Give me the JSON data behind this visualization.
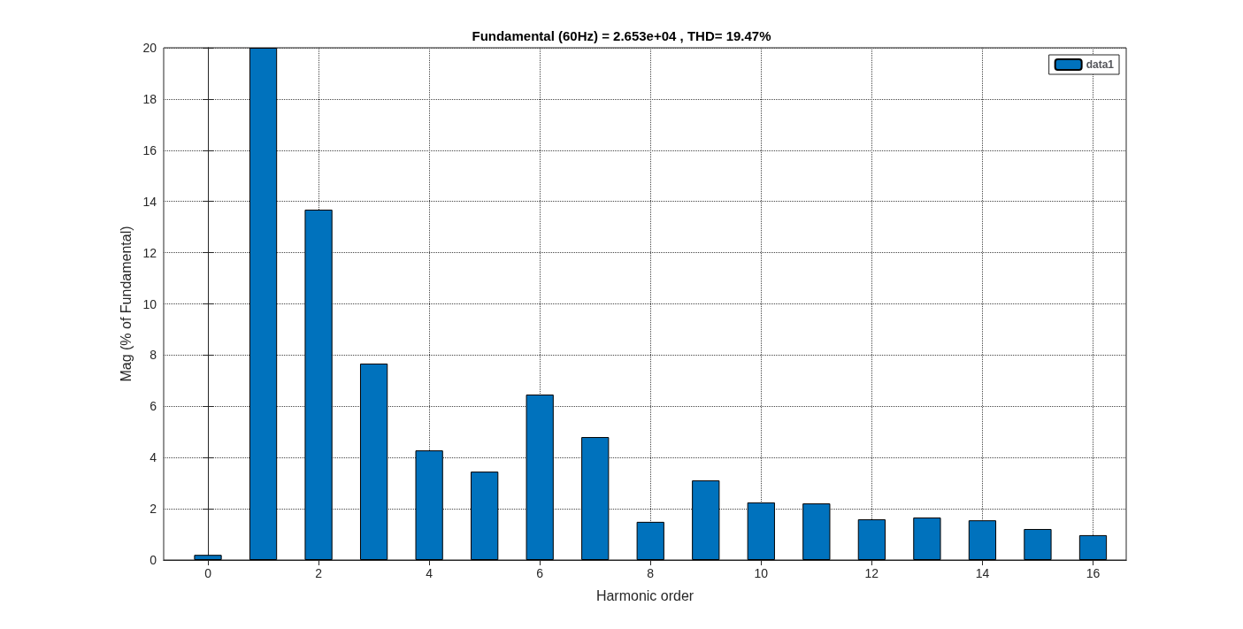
{
  "chart_data": {
    "type": "bar",
    "title": "Fundamental (60Hz) = 2.653e+04 , THD= 19.47%",
    "xlabel": "Harmonic order",
    "ylabel": "Mag (% of Fundamental)",
    "x": [
      0,
      1,
      2,
      3,
      4,
      5,
      6,
      7,
      8,
      9,
      10,
      11,
      12,
      13,
      14,
      15,
      16
    ],
    "series": [
      {
        "name": "data1",
        "color": "#0072bd",
        "values": [
          0.2,
          20,
          13.68,
          7.67,
          4.28,
          3.45,
          6.46,
          4.8,
          1.49,
          3.11,
          2.25,
          2.21,
          1.59,
          1.66,
          1.55,
          1.21,
          0.97
        ]
      }
    ],
    "xlim": [
      -0.8,
      16.6
    ],
    "xticks": [
      0,
      2,
      4,
      6,
      8,
      10,
      12,
      14,
      16
    ],
    "ylim": [
      0,
      20
    ],
    "yticks": [
      0,
      2,
      4,
      6,
      8,
      10,
      12,
      14,
      16,
      18,
      20
    ],
    "grid": true,
    "legend": "top right"
  }
}
